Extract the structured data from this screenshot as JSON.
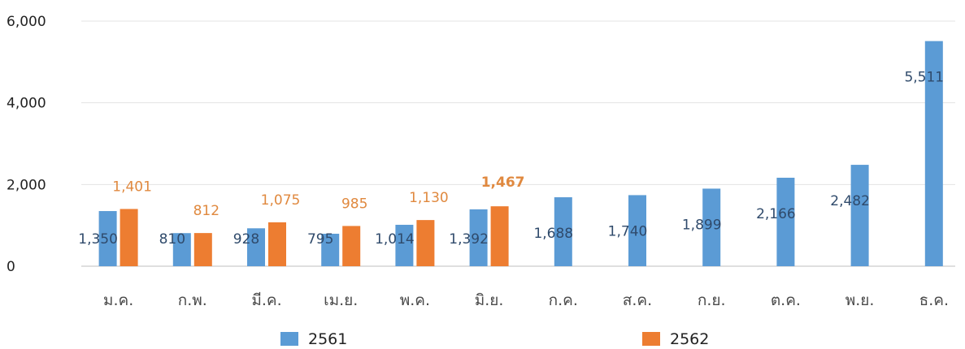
{
  "chart_data": {
    "type": "bar",
    "categories": [
      "ม.ค.",
      "ก.พ.",
      "มี.ค.",
      "เม.ย.",
      "พ.ค.",
      "มิ.ย.",
      "ก.ค.",
      "ส.ค.",
      "ก.ย.",
      "ต.ค.",
      "พ.ย.",
      "ธ.ค."
    ],
    "series": [
      {
        "name": "2561",
        "color": "#5b9bd5",
        "label_color": "#2f4a6b",
        "values": [
          1350,
          810,
          928,
          795,
          1014,
          1392,
          1688,
          1740,
          1899,
          2166,
          2482,
          5511
        ],
        "labels": [
          "1,350",
          "810",
          "928",
          "795",
          "1,014",
          "1,392",
          "1,688",
          "1,740",
          "1,899",
          "2,166",
          "2,482",
          "5,511"
        ]
      },
      {
        "name": "2562",
        "color": "#ed7d31",
        "label_color": "#e0893f",
        "values": [
          1401,
          812,
          1075,
          985,
          1130,
          1467,
          null,
          null,
          null,
          null,
          null,
          null
        ],
        "labels": [
          "1,401",
          "812",
          "1,075",
          "985",
          "1,130",
          "1,467",
          "",
          "",
          "",
          "",
          "",
          ""
        ],
        "emphasized_label_index": 5
      }
    ],
    "ylim": [
      0,
      6000
    ],
    "yticks": [
      0,
      2000,
      4000,
      6000
    ],
    "ytick_labels": [
      "0",
      "2,000",
      "4,000",
      "6,000"
    ],
    "grid": true,
    "legend": "bottom",
    "title": "",
    "xlabel": "",
    "ylabel": ""
  }
}
